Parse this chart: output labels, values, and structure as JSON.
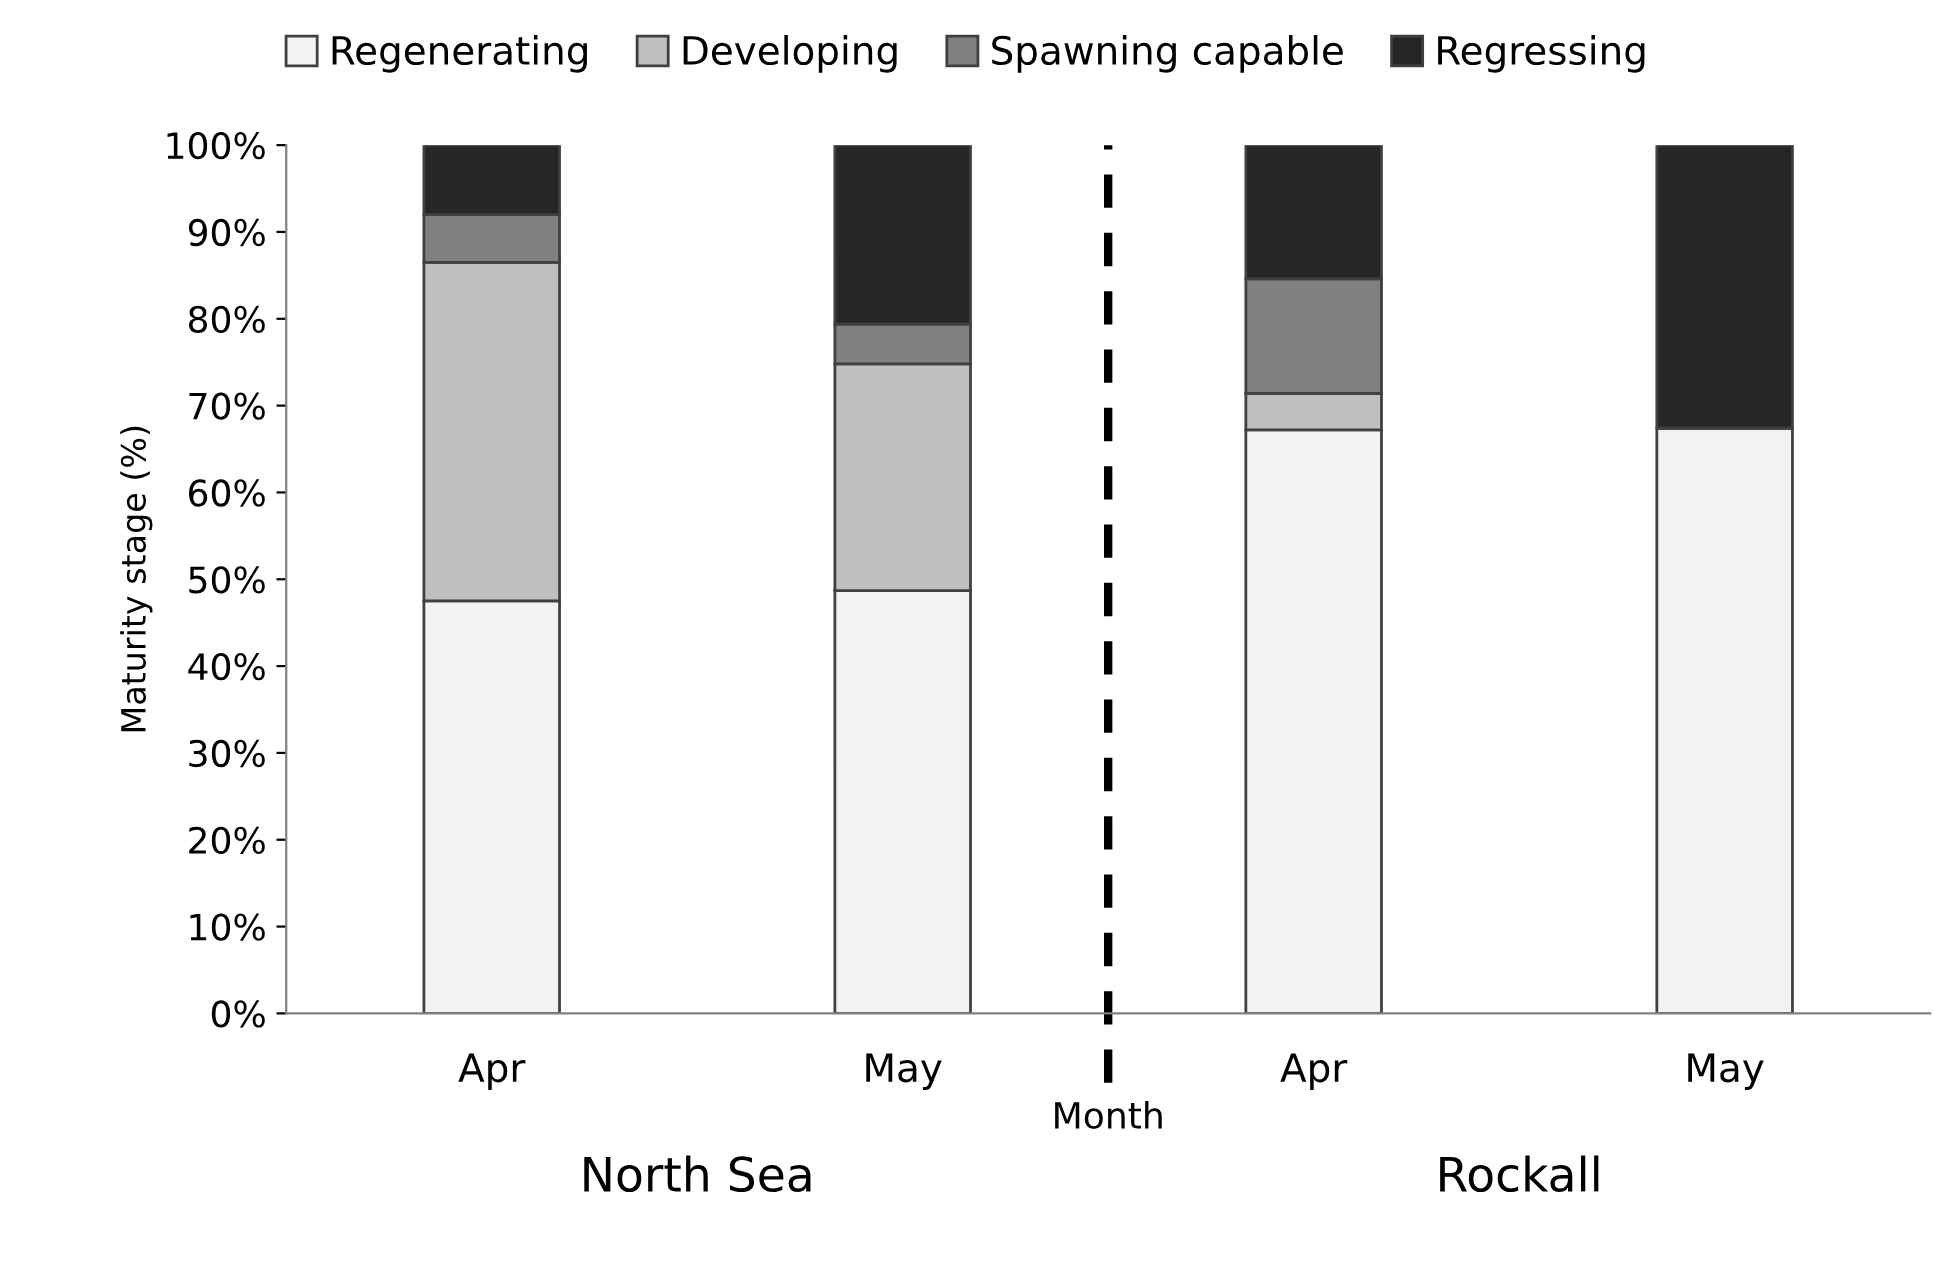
{
  "chart_data": {
    "type": "bar",
    "stacked": true,
    "categories": [
      "Apr",
      "May",
      "Apr",
      "May"
    ],
    "xlabel": "Month",
    "ylabel": "Maturity stage (%)",
    "series": [
      {
        "name": "Regenerating",
        "color": "#f2f2f2",
        "values": [
          47.5,
          48.7,
          67.2,
          67.4
        ]
      },
      {
        "name": "Developing",
        "color": "#bfbfbf",
        "values": [
          39.0,
          26.1,
          4.2,
          0
        ]
      },
      {
        "name": "Spawning capable",
        "color": "#808080",
        "values": [
          5.5,
          4.6,
          13.2,
          0
        ]
      },
      {
        "name": "Regressing",
        "color": "#262626",
        "values": [
          8.0,
          20.6,
          15.4,
          32.6
        ]
      }
    ],
    "ylim": [
      0,
      100
    ],
    "yticks": [
      {
        "value": 0,
        "label": "0%"
      },
      {
        "value": 10,
        "label": "10%"
      },
      {
        "value": 20,
        "label": "20%"
      },
      {
        "value": 30,
        "label": "30%"
      },
      {
        "value": 40,
        "label": "40%"
      },
      {
        "value": 50,
        "label": "50%"
      },
      {
        "value": 60,
        "label": "60%"
      },
      {
        "value": 70,
        "label": "70%"
      },
      {
        "value": 80,
        "label": "80%"
      },
      {
        "value": 90,
        "label": "90%"
      },
      {
        "value": 100,
        "label": "100%"
      }
    ],
    "annotations": [
      "North Sea",
      "Rockall"
    ],
    "legend": "top",
    "grid": false
  }
}
